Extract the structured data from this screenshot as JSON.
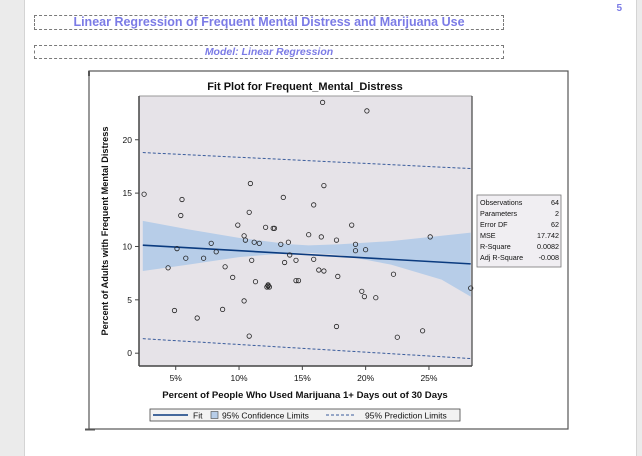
{
  "page": {
    "page_number": "5",
    "title": "Linear Regression of Frequent Mental Distress and Marijuana Use",
    "subtitle": "Model: Linear Regression"
  },
  "colors": {
    "title": "#7b7be6",
    "plot_background": "#e6e3e8",
    "fit_line": "#0b3b7f",
    "confidence_band": "#b7cde8",
    "prediction_line": "#3a5c9c",
    "marker": "#222222"
  },
  "stats_table": [
    {
      "label": "Observations",
      "value": "64"
    },
    {
      "label": "Parameters",
      "value": "2"
    },
    {
      "label": "Error DF",
      "value": "62"
    },
    {
      "label": "MSE",
      "value": "17.742"
    },
    {
      "label": "R-Square",
      "value": "0.0082"
    },
    {
      "label": "Adj R-Square",
      "value": "-0.008"
    }
  ],
  "chart_data": {
    "type": "scatter",
    "title": "Fit Plot for Frequent_Mental_Distress",
    "xlabel": "Percent of People Who Used Marijuana 1+ Days out of 30 Days",
    "ylabel": "Percent of Adults with Frequent Mental Distress",
    "xlim": [
      2.1,
      28.4
    ],
    "ylim": [
      -1.2,
      24.1
    ],
    "x_ticks": [
      5,
      10,
      15,
      20,
      25
    ],
    "x_tick_labels": [
      "5%",
      "10%",
      "15%",
      "20%",
      "25%"
    ],
    "y_ticks": [
      0,
      5,
      10,
      15,
      20
    ],
    "y_tick_labels": [
      "0",
      "5",
      "10",
      "15",
      "20"
    ],
    "grid": false,
    "legend": {
      "placement": "bottom",
      "entries": [
        "Fit",
        "95% Confidence Limits",
        "95% Prediction Limits"
      ]
    },
    "fit": {
      "x": [
        2.4,
        28.3
      ],
      "y": [
        10.12,
        8.37
      ]
    },
    "confidence_limits": {
      "x": [
        2.4,
        6,
        10,
        14,
        15.5,
        18,
        22,
        26,
        28.3
      ],
      "upper": [
        12.4,
        11.6,
        10.8,
        10.2,
        10.1,
        10.2,
        10.5,
        11.0,
        11.3
      ],
      "lower": [
        7.7,
        8.3,
        9.0,
        9.4,
        9.4,
        9.2,
        8.3,
        6.9,
        5.3
      ]
    },
    "prediction_limits": {
      "x": [
        2.4,
        28.3
      ],
      "upper": [
        18.8,
        17.3
      ],
      "lower": [
        1.36,
        -0.5
      ]
    },
    "points": [
      [
        2.5,
        14.9
      ],
      [
        5.5,
        14.4
      ],
      [
        5.4,
        12.9
      ],
      [
        10.9,
        15.9
      ],
      [
        13.5,
        14.6
      ],
      [
        10.8,
        13.2
      ],
      [
        9.9,
        12.0
      ],
      [
        12.1,
        11.8
      ],
      [
        12.7,
        11.7
      ],
      [
        12.8,
        11.7
      ],
      [
        10.4,
        11.0
      ],
      [
        10.5,
        10.6
      ],
      [
        7.8,
        10.3
      ],
      [
        11.2,
        10.4
      ],
      [
        11.6,
        10.3
      ],
      [
        13.3,
        10.2
      ],
      [
        13.9,
        10.4
      ],
      [
        15.5,
        11.1
      ],
      [
        5.1,
        9.8
      ],
      [
        8.2,
        9.5
      ],
      [
        5.8,
        8.9
      ],
      [
        7.2,
        8.9
      ],
      [
        11.0,
        8.7
      ],
      [
        14.0,
        9.2
      ],
      [
        13.6,
        8.5
      ],
      [
        14.5,
        8.7
      ],
      [
        4.4,
        8.0
      ],
      [
        8.9,
        8.1
      ],
      [
        9.5,
        7.1
      ],
      [
        11.3,
        6.7
      ],
      [
        12.3,
        6.3
      ],
      [
        12.4,
        6.2
      ],
      [
        12.2,
        6.2
      ],
      [
        14.5,
        6.8
      ],
      [
        14.7,
        6.8
      ],
      [
        16.6,
        23.5
      ],
      [
        20.1,
        22.7
      ],
      [
        16.7,
        15.7
      ],
      [
        15.9,
        13.9
      ],
      [
        18.9,
        12.0
      ],
      [
        16.5,
        10.9
      ],
      [
        17.7,
        10.6
      ],
      [
        19.2,
        10.2
      ],
      [
        19.2,
        9.6
      ],
      [
        20.0,
        9.7
      ],
      [
        25.1,
        10.9
      ],
      [
        15.9,
        8.8
      ],
      [
        16.3,
        7.8
      ],
      [
        16.7,
        7.7
      ],
      [
        17.8,
        7.2
      ],
      [
        22.2,
        7.4
      ],
      [
        28.3,
        6.1
      ],
      [
        19.7,
        5.8
      ],
      [
        19.9,
        5.3
      ],
      [
        20.8,
        5.2
      ],
      [
        17.7,
        2.5
      ],
      [
        22.5,
        1.5
      ],
      [
        24.5,
        2.1
      ],
      [
        10.4,
        4.9
      ],
      [
        4.9,
        4.0
      ],
      [
        6.7,
        3.3
      ],
      [
        8.7,
        4.1
      ],
      [
        10.8,
        1.6
      ],
      [
        12.3,
        6.4
      ]
    ]
  }
}
